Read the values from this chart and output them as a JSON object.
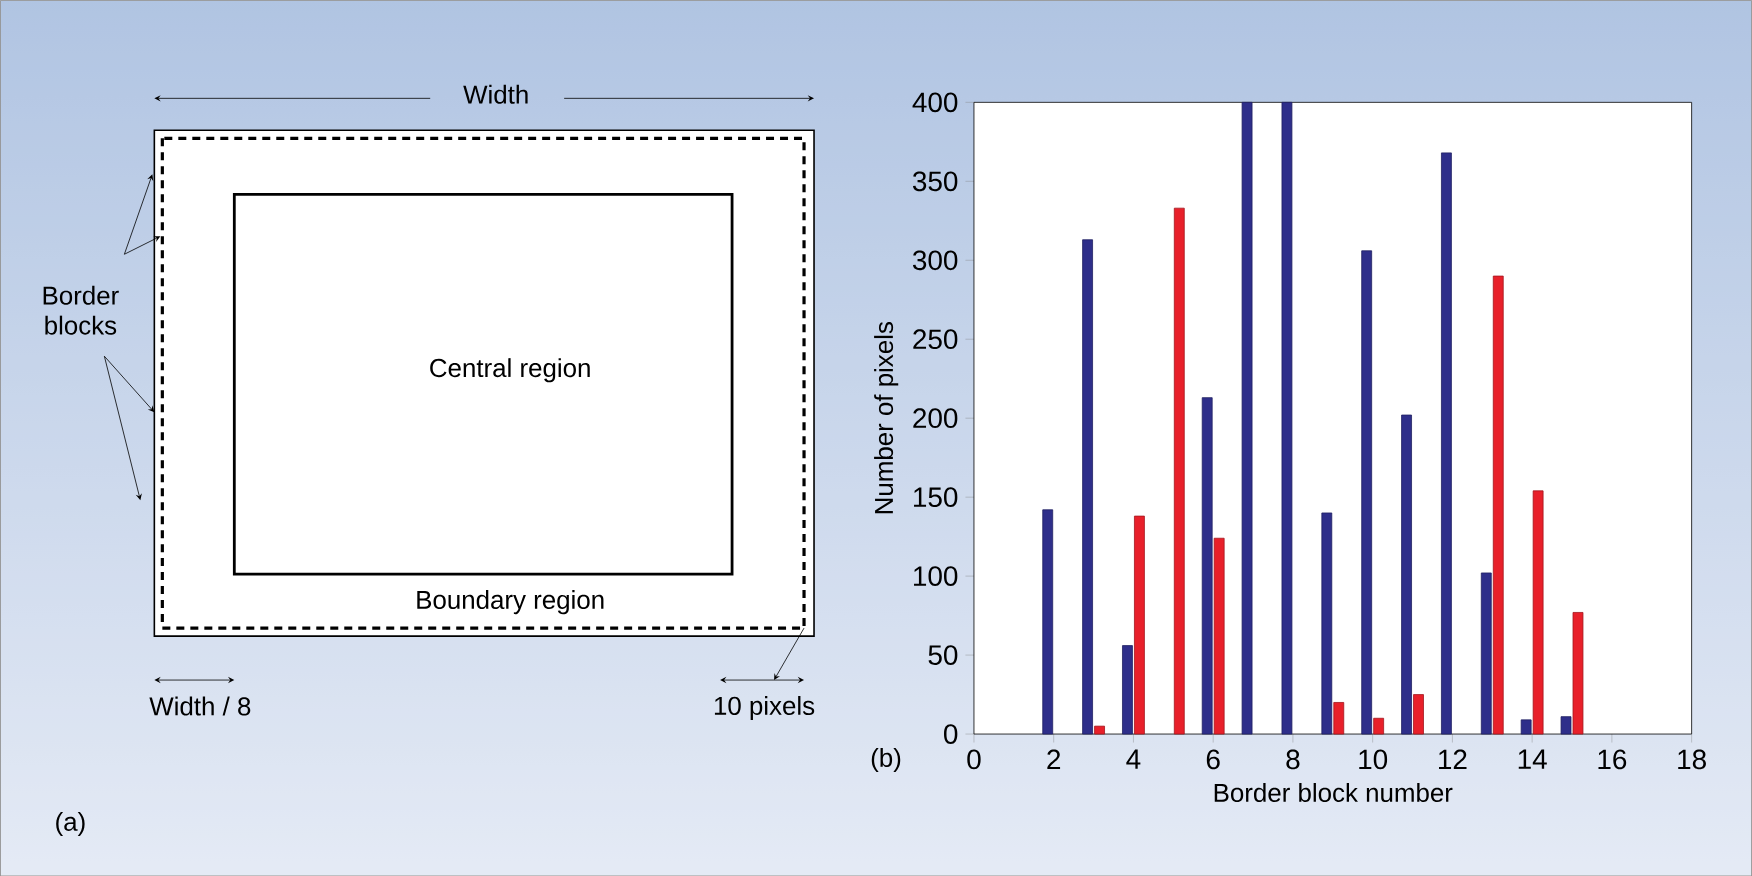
{
  "chart_data": [
    {
      "type": "other",
      "annotations": [
        "Width",
        "Border blocks",
        "Central region",
        "Boundary region",
        "Width / 8",
        "10 pixels",
        "(a)"
      ]
    },
    {
      "type": "bar",
      "xlabel": "Border block number",
      "ylabel": "Number of pixels",
      "annotations": [
        "(b)"
      ],
      "x": [
        2,
        3,
        4,
        5,
        6,
        7,
        8,
        9,
        10,
        11,
        12,
        13,
        14,
        15
      ],
      "series": [
        {
          "color": "#2e2e8a",
          "values": [
            142,
            313,
            56,
            null,
            213,
            400,
            400,
            140,
            306,
            202,
            368,
            102,
            9,
            11
          ]
        },
        {
          "color": "#e8202a",
          "values": [
            null,
            5,
            138,
            333,
            124,
            null,
            null,
            20,
            10,
            25,
            null,
            290,
            154,
            77
          ]
        }
      ],
      "xlim": [
        0,
        18
      ],
      "xticks": [
        0,
        2,
        4,
        6,
        8,
        10,
        12,
        14,
        16,
        18
      ],
      "ylim": [
        0,
        400
      ],
      "yticks": [
        0,
        50,
        100,
        150,
        200,
        250,
        300,
        350,
        400
      ]
    }
  ]
}
